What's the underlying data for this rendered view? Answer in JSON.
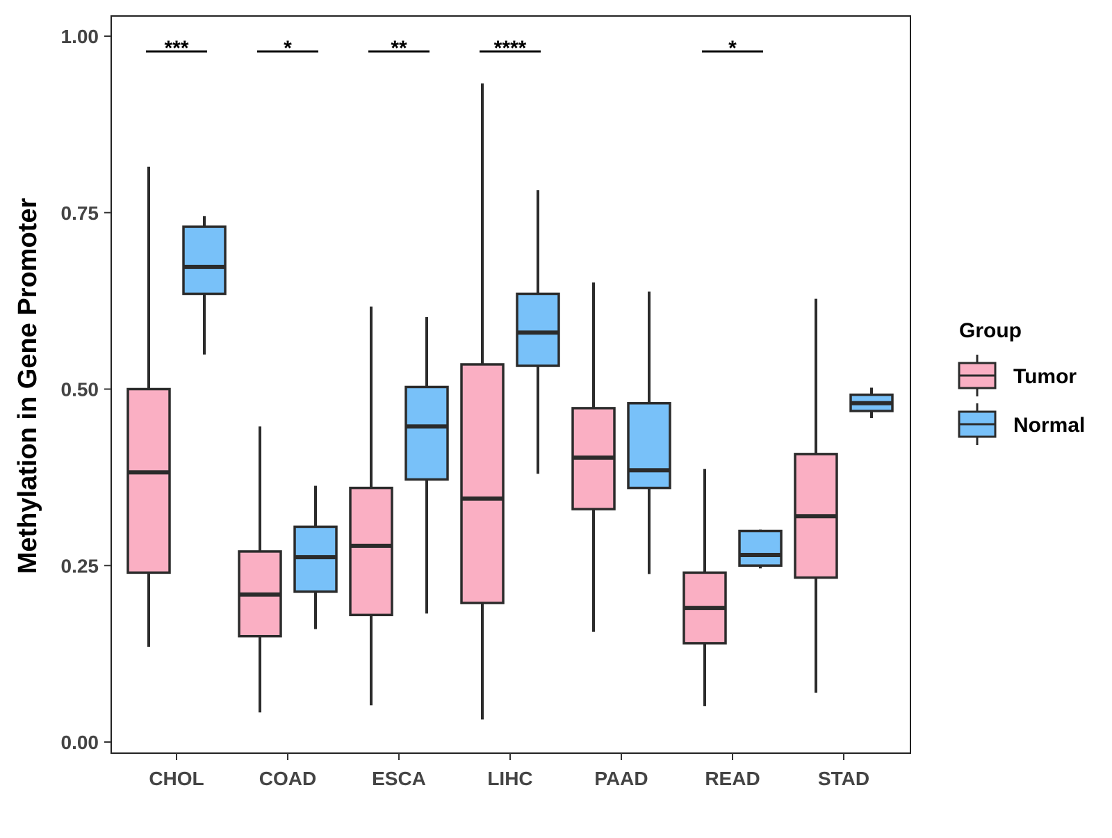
{
  "chart_data": {
    "type": "boxplot",
    "title": "",
    "xlabel": "",
    "ylabel": "Methylation in Gene Promoter",
    "ylim": [
      0,
      1
    ],
    "yticks": [
      0,
      0.25,
      0.5,
      0.75,
      1.0
    ],
    "ytick_labels": [
      "0.00",
      "0.25",
      "0.50",
      "0.75",
      "1.00"
    ],
    "grid": false,
    "categories": [
      "CHOL",
      "COAD",
      "ESCA",
      "LIHC",
      "PAAD",
      "READ",
      "STAD"
    ],
    "legend": {
      "title": "Group",
      "position": "right",
      "entries": [
        {
          "name": "Tumor",
          "color": "#FAAFC3"
        },
        {
          "name": "Normal",
          "color": "#78C1F9"
        }
      ]
    },
    "series": [
      {
        "name": "Tumor",
        "color": "#FAAFC3",
        "boxes": [
          {
            "category": "CHOL",
            "min": 0.135,
            "q1": 0.24,
            "median": 0.382,
            "q3": 0.5,
            "max": 0.815
          },
          {
            "category": "COAD",
            "min": 0.042,
            "q1": 0.15,
            "median": 0.209,
            "q3": 0.27,
            "max": 0.447
          },
          {
            "category": "ESCA",
            "min": 0.052,
            "q1": 0.18,
            "median": 0.278,
            "q3": 0.36,
            "max": 0.617
          },
          {
            "category": "LIHC",
            "min": 0.032,
            "q1": 0.197,
            "median": 0.345,
            "q3": 0.535,
            "max": 0.933
          },
          {
            "category": "PAAD",
            "min": 0.156,
            "q1": 0.33,
            "median": 0.403,
            "q3": 0.473,
            "max": 0.651
          },
          {
            "category": "READ",
            "min": 0.051,
            "q1": 0.14,
            "median": 0.19,
            "q3": 0.24,
            "max": 0.387
          },
          {
            "category": "STAD",
            "min": 0.07,
            "q1": 0.233,
            "median": 0.32,
            "q3": 0.408,
            "max": 0.628
          }
        ]
      },
      {
        "name": "Normal",
        "color": "#78C1F9",
        "boxes": [
          {
            "category": "CHOL",
            "min": 0.549,
            "q1": 0.635,
            "median": 0.673,
            "q3": 0.73,
            "max": 0.745
          },
          {
            "category": "COAD",
            "min": 0.16,
            "q1": 0.213,
            "median": 0.262,
            "q3": 0.305,
            "max": 0.363
          },
          {
            "category": "ESCA",
            "min": 0.182,
            "q1": 0.372,
            "median": 0.447,
            "q3": 0.503,
            "max": 0.602
          },
          {
            "category": "LIHC",
            "min": 0.38,
            "q1": 0.533,
            "median": 0.58,
            "q3": 0.635,
            "max": 0.782
          },
          {
            "category": "PAAD",
            "min": 0.238,
            "q1": 0.36,
            "median": 0.385,
            "q3": 0.48,
            "max": 0.638
          },
          {
            "category": "READ",
            "min": 0.246,
            "q1": 0.25,
            "median": 0.265,
            "q3": 0.299,
            "max": 0.301
          },
          {
            "category": "STAD",
            "min": 0.459,
            "q1": 0.469,
            "median": 0.48,
            "q3": 0.492,
            "max": 0.502
          }
        ]
      }
    ],
    "significance": [
      {
        "category": "CHOL",
        "label": "***"
      },
      {
        "category": "COAD",
        "label": "*"
      },
      {
        "category": "ESCA",
        "label": "**"
      },
      {
        "category": "LIHC",
        "label": "****"
      },
      {
        "category": "READ",
        "label": "*"
      }
    ]
  }
}
